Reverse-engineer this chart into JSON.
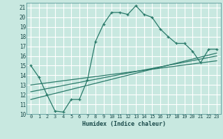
{
  "title": "",
  "xlabel": "Humidex (Indice chaleur)",
  "bg_color": "#c8e8e0",
  "grid_color": "#ffffff",
  "line_color": "#2a7a6a",
  "xlim": [
    -0.5,
    23.5
  ],
  "ylim": [
    10,
    21.5
  ],
  "xticks": [
    0,
    1,
    2,
    3,
    4,
    5,
    6,
    7,
    8,
    9,
    10,
    11,
    12,
    13,
    14,
    15,
    16,
    17,
    18,
    19,
    20,
    21,
    22,
    23
  ],
  "yticks": [
    10,
    11,
    12,
    13,
    14,
    15,
    16,
    17,
    18,
    19,
    20,
    21
  ],
  "main_line_x": [
    0,
    1,
    2,
    3,
    4,
    5,
    6,
    7,
    8,
    9,
    10,
    11,
    12,
    13,
    14,
    15,
    16,
    17,
    18,
    19,
    20,
    21,
    22,
    23
  ],
  "main_line_y": [
    15.0,
    13.8,
    12.0,
    10.3,
    10.2,
    11.5,
    11.5,
    13.5,
    17.5,
    19.3,
    20.5,
    20.5,
    20.3,
    21.2,
    20.3,
    20.0,
    18.8,
    18.0,
    17.3,
    17.3,
    16.5,
    15.3,
    16.7,
    16.7
  ],
  "ref_lines": [
    {
      "x": [
        0,
        23
      ],
      "y": [
        11.5,
        16.3
      ]
    },
    {
      "x": [
        0,
        23
      ],
      "y": [
        12.3,
        16.0
      ]
    },
    {
      "x": [
        0,
        23
      ],
      "y": [
        13.0,
        15.5
      ]
    }
  ]
}
